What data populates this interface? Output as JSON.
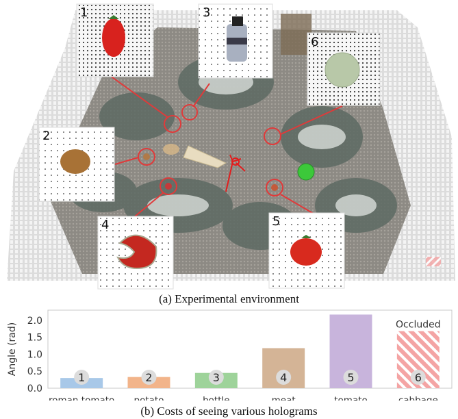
{
  "figure": {
    "caption_a": "(a) Experimental environment",
    "caption_b": "(b) Costs of seeing various holograms",
    "inset_markers": [
      "1",
      "2",
      "3",
      "4",
      "5",
      "6"
    ]
  },
  "chart_data": {
    "type": "bar",
    "categories": [
      "roman tomato",
      "potato",
      "bottle",
      "meat",
      "tomato",
      "cabbage"
    ],
    "values": [
      0.3,
      0.33,
      0.45,
      1.18,
      2.17,
      1.68
    ],
    "badges": [
      "1",
      "2",
      "3",
      "4",
      "5",
      "6"
    ],
    "colors": [
      "#a8c8e8",
      "#f2b48a",
      "#9ed39a",
      "#d4b496",
      "#c8b4dc",
      "#f4a4a4"
    ],
    "hatched": [
      false,
      false,
      false,
      false,
      false,
      true
    ],
    "annotation": {
      "category": "cabbage",
      "text": "Occluded"
    },
    "title": "",
    "xlabel": "",
    "ylabel": "Angle (rad)",
    "ylim": [
      0,
      2.3
    ],
    "yticks": [
      "0.0",
      "0.5",
      "1.0",
      "1.5",
      "2.0"
    ],
    "grid": false
  }
}
